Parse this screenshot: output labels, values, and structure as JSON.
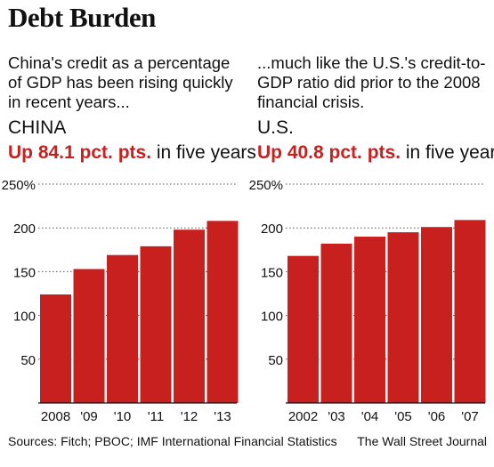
{
  "title": "Debt Burden",
  "panels": [
    {
      "subtitle": "China's credit as a percentage of GDP has been rising quickly in recent years...",
      "country": "CHINA",
      "highlight": "Up 84.1 pct. pts.",
      "headline_rest": " in five years"
    },
    {
      "subtitle": "...much like the U.S.'s credit-to-GDP ratio did prior to the 2008 financial crisis.",
      "country": "U.S.",
      "highlight": "Up 40.8 pct. pts.",
      "headline_rest": " in five years"
    }
  ],
  "chart_data": [
    {
      "type": "bar",
      "categories": [
        "2008",
        "'09",
        "'10",
        "'11",
        "'12",
        "'13"
      ],
      "values": [
        124,
        153,
        169,
        179,
        198,
        208
      ],
      "ylim": [
        0,
        250
      ],
      "yticks": [
        0,
        50,
        100,
        150,
        200,
        250
      ],
      "ytick_labels": [
        "",
        "50",
        "100",
        "150",
        "200",
        "250%"
      ],
      "grid": "dotted",
      "color": "#c8201f"
    },
    {
      "type": "bar",
      "categories": [
        "2002",
        "'03",
        "'04",
        "'05",
        "'06",
        "'07"
      ],
      "values": [
        168,
        182,
        190,
        195,
        201,
        209
      ],
      "ylim": [
        0,
        250
      ],
      "yticks": [
        0,
        50,
        100,
        150,
        200,
        250
      ],
      "ytick_labels": [
        "",
        "50",
        "100",
        "150",
        "200",
        "250%"
      ],
      "grid": "dotted",
      "color": "#c8201f"
    }
  ],
  "footer": {
    "sources": "Sources: Fitch; PBOC; IMF International Financial Statistics",
    "credit": "The Wall Street Journal"
  }
}
